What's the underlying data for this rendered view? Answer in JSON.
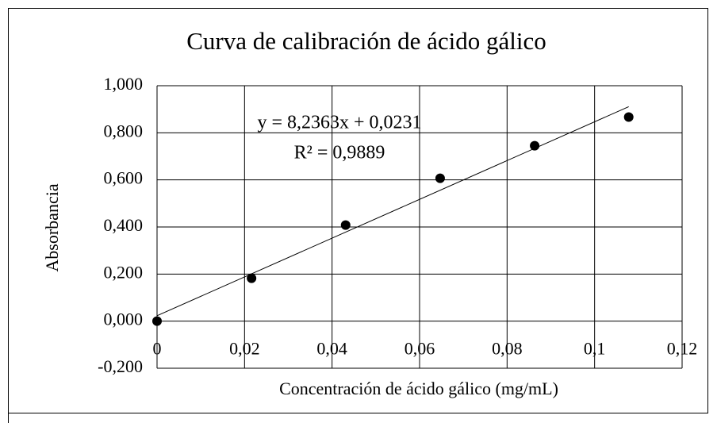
{
  "chart_data": {
    "type": "scatter",
    "title": "Curva de calibración de ácido gálico",
    "x_label": "Concentración de ácido gálico (mg/mL)",
    "y_label": "Absorbancia",
    "annotations": [
      "y = 8,2363x + 0,0231",
      "R² = 0,9889"
    ],
    "trendline": {
      "slope": 8.2363,
      "intercept": 0.0231,
      "color": "#000000"
    },
    "x": [
      0,
      0.0216,
      0.0431,
      0.0647,
      0.0863,
      0.1078
    ],
    "values": [
      0,
      0.182,
      0.408,
      0.607,
      0.745,
      0.867
    ],
    "color": "#000000",
    "xlim": [
      0,
      0.12
    ],
    "ylim": [
      -0.2,
      1.0
    ],
    "xticks": [
      0,
      {
        "value": 0.02,
        "label": "0,02"
      },
      {
        "value": 0.04,
        "label": "0,04"
      },
      {
        "value": 0.06,
        "label": "0,06"
      },
      {
        "value": 0.08,
        "label": "0,08"
      },
      {
        "value": 0.1,
        "label": "0,1"
      },
      {
        "value": 0.12,
        "label": "0,12"
      }
    ],
    "yticks": [
      {
        "value": -0.2,
        "label": "-0,200"
      },
      {
        "value": 0,
        "label": "0,000"
      },
      {
        "value": 0.2,
        "label": "0,200"
      },
      {
        "value": 0.4,
        "label": "0,400"
      },
      {
        "value": 0.6,
        "label": "0,600"
      },
      {
        "value": 0.8,
        "label": "0,800"
      },
      {
        "value": 1.0,
        "label": "1,000"
      }
    ],
    "grid": true
  }
}
